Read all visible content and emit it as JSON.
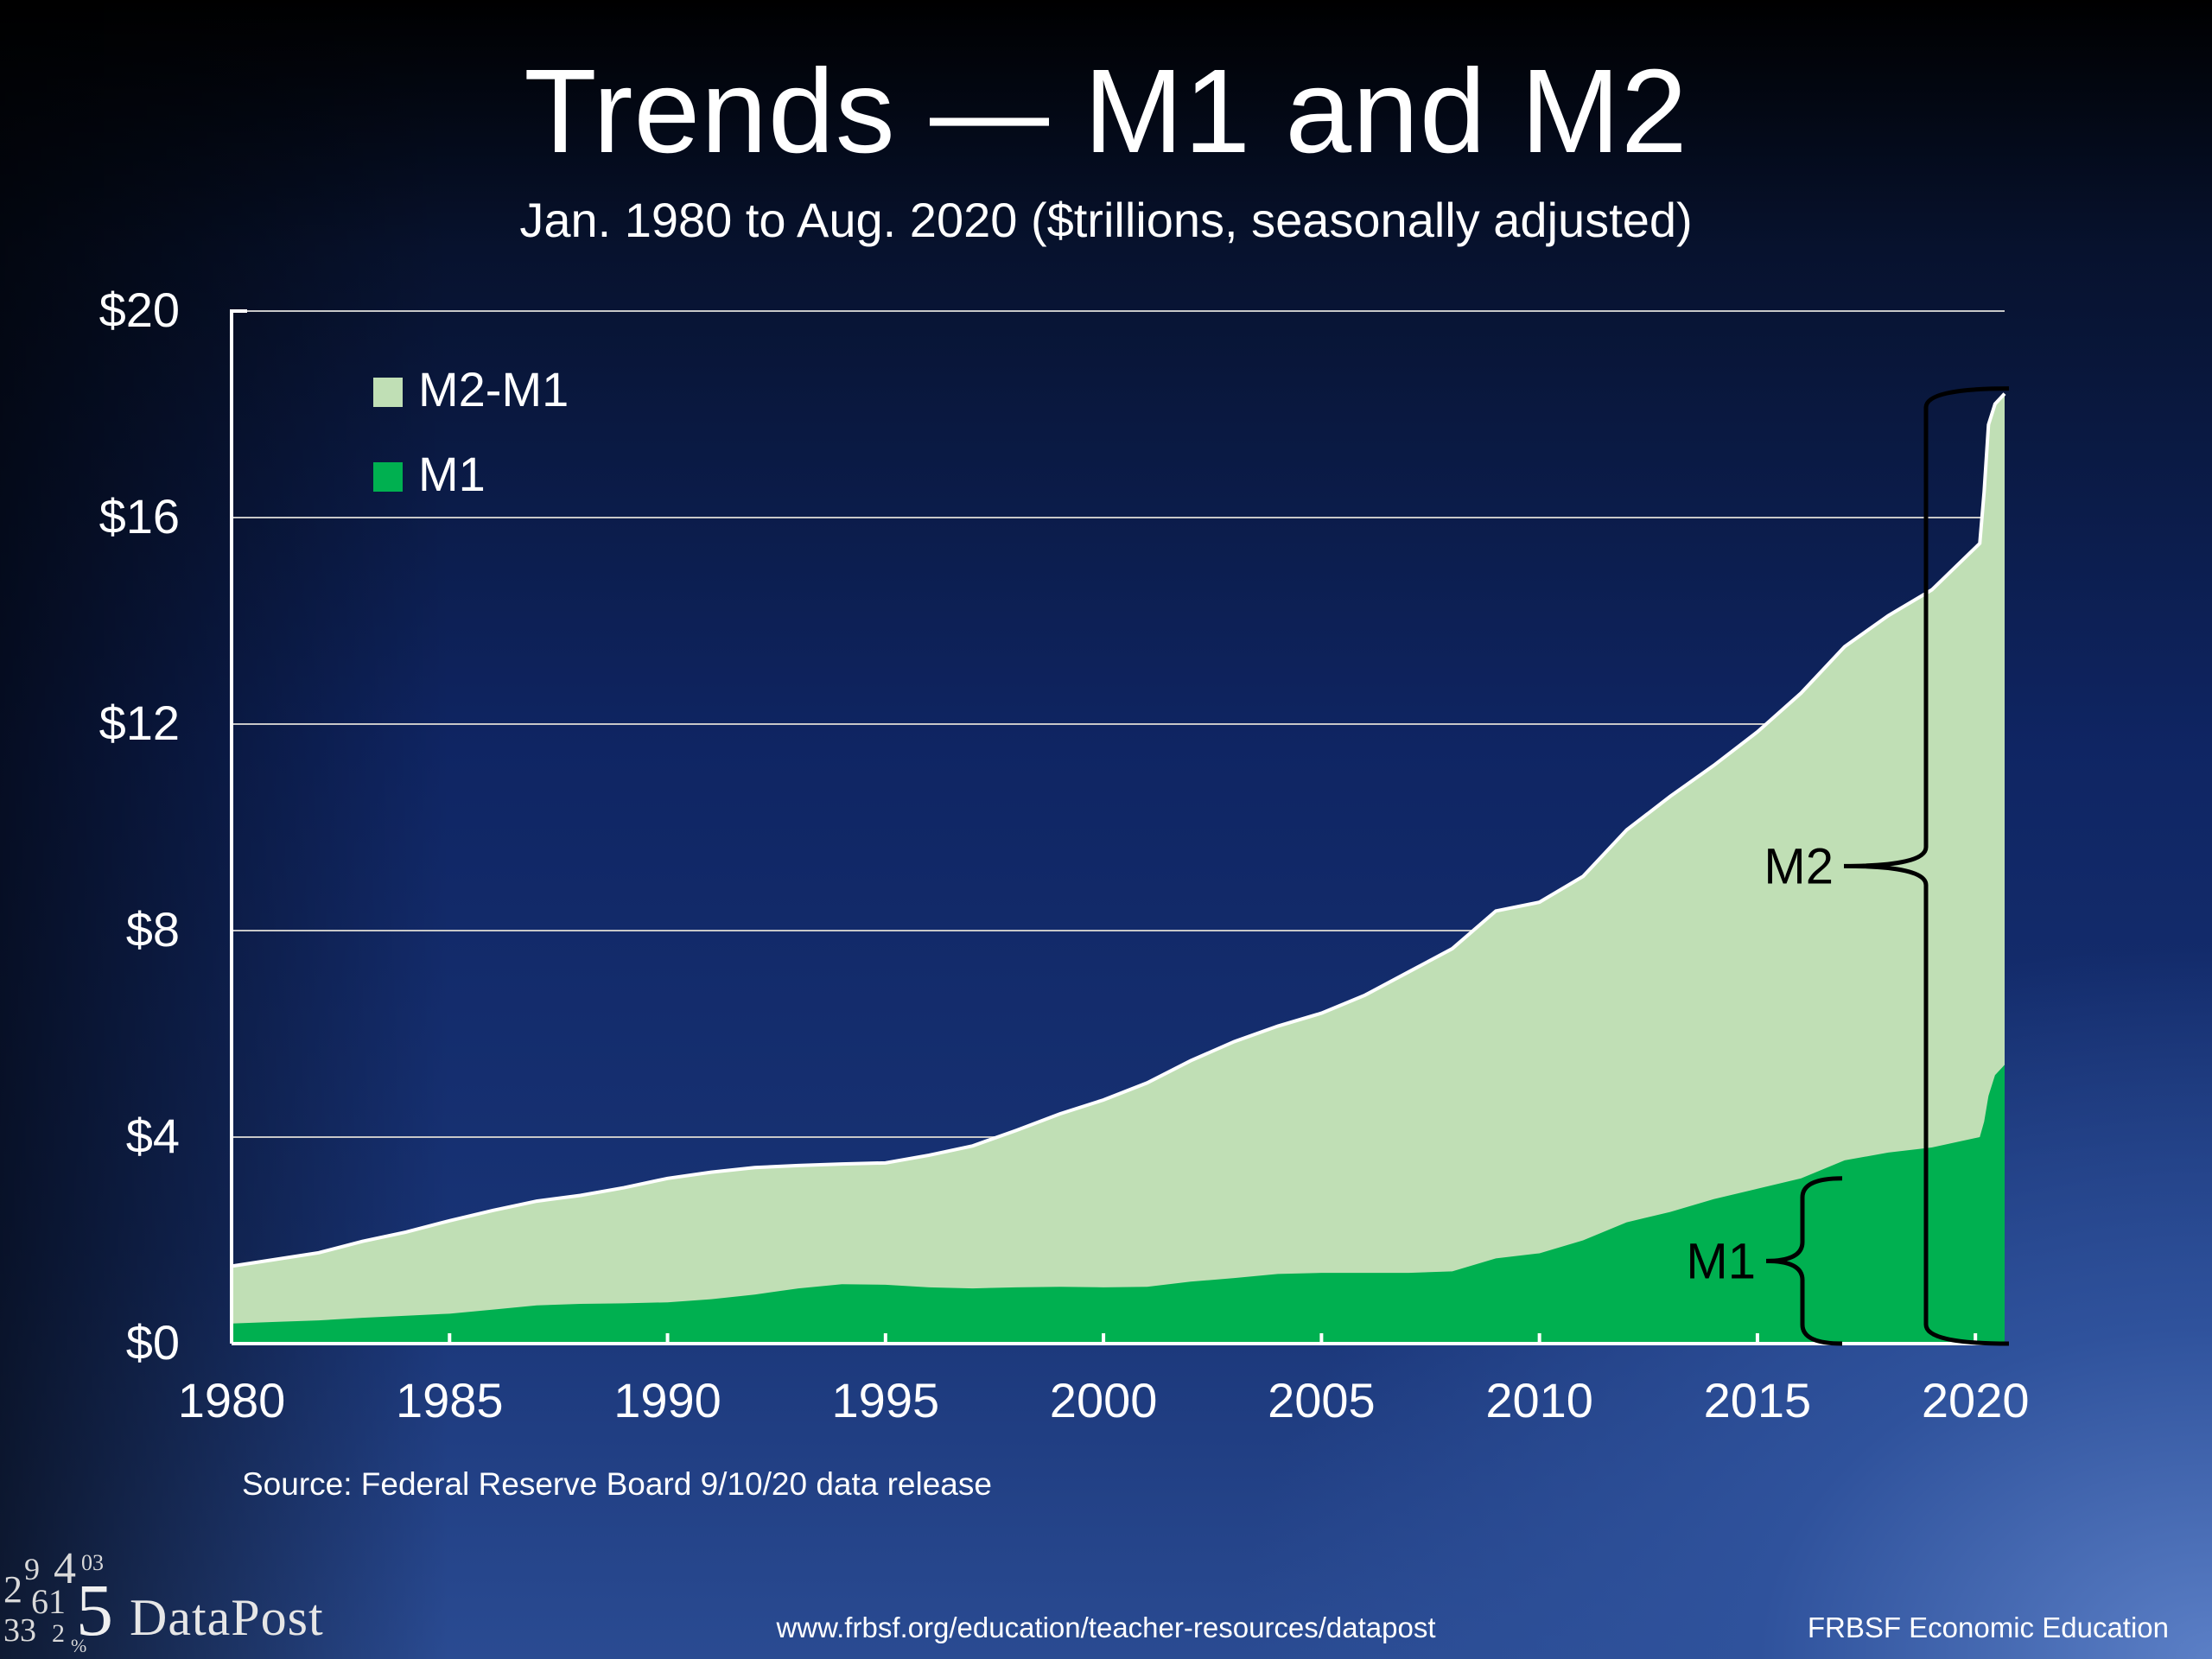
{
  "chart_data": {
    "type": "area",
    "title": "Trends — M1 and M2",
    "subtitle": "Jan. 1980 to Aug. 2020 ($trillions, seasonally adjusted)",
    "xlabel": "",
    "ylabel": "",
    "xlim": [
      1980,
      2020.67
    ],
    "ylim": [
      0,
      20
    ],
    "x_ticks": [
      1980,
      1985,
      1990,
      1995,
      2000,
      2005,
      2010,
      2015,
      2020
    ],
    "y_ticks": [
      0,
      4,
      8,
      12,
      16,
      20
    ],
    "y_tick_labels": [
      "$0",
      "$4",
      "$8",
      "$12",
      "$16",
      "$20"
    ],
    "grid": true,
    "legend_position": "top-left",
    "stacked": true,
    "series": [
      {
        "name": "M1",
        "color": "#00b050",
        "points": [
          [
            1980,
            0.39
          ],
          [
            1981,
            0.42
          ],
          [
            1982,
            0.45
          ],
          [
            1983,
            0.5
          ],
          [
            1984,
            0.54
          ],
          [
            1985,
            0.58
          ],
          [
            1986,
            0.66
          ],
          [
            1987,
            0.74
          ],
          [
            1988,
            0.77
          ],
          [
            1989,
            0.78
          ],
          [
            1990,
            0.8
          ],
          [
            1991,
            0.86
          ],
          [
            1992,
            0.95
          ],
          [
            1993,
            1.07
          ],
          [
            1994,
            1.15
          ],
          [
            1995,
            1.14
          ],
          [
            1996,
            1.09
          ],
          [
            1997,
            1.07
          ],
          [
            1998,
            1.09
          ],
          [
            1999,
            1.1
          ],
          [
            2000,
            1.09
          ],
          [
            2001,
            1.1
          ],
          [
            2002,
            1.2
          ],
          [
            2003,
            1.27
          ],
          [
            2004,
            1.35
          ],
          [
            2005,
            1.37
          ],
          [
            2006,
            1.37
          ],
          [
            2007,
            1.37
          ],
          [
            2008,
            1.4
          ],
          [
            2009,
            1.65
          ],
          [
            2010,
            1.75
          ],
          [
            2011,
            2.0
          ],
          [
            2012,
            2.35
          ],
          [
            2013,
            2.55
          ],
          [
            2014,
            2.8
          ],
          [
            2015,
            3.0
          ],
          [
            2016,
            3.2
          ],
          [
            2017,
            3.55
          ],
          [
            2018,
            3.7
          ],
          [
            2019,
            3.8
          ],
          [
            2020.1,
            4.0
          ],
          [
            2020.2,
            4.3
          ],
          [
            2020.3,
            4.8
          ],
          [
            2020.45,
            5.2
          ],
          [
            2020.67,
            5.4
          ]
        ]
      },
      {
        "name": "M2-M1",
        "color": "#c0dfb5",
        "note": "stacked top equals M2",
        "m2_points": [
          [
            1980,
            1.5
          ],
          [
            1981,
            1.63
          ],
          [
            1982,
            1.76
          ],
          [
            1983,
            1.98
          ],
          [
            1984,
            2.16
          ],
          [
            1985,
            2.38
          ],
          [
            1986,
            2.58
          ],
          [
            1987,
            2.76
          ],
          [
            1988,
            2.87
          ],
          [
            1989,
            3.02
          ],
          [
            1990,
            3.2
          ],
          [
            1991,
            3.32
          ],
          [
            1992,
            3.41
          ],
          [
            1993,
            3.45
          ],
          [
            1994,
            3.48
          ],
          [
            1995,
            3.5
          ],
          [
            1996,
            3.65
          ],
          [
            1997,
            3.83
          ],
          [
            1998,
            4.13
          ],
          [
            1999,
            4.45
          ],
          [
            2000,
            4.72
          ],
          [
            2001,
            5.05
          ],
          [
            2002,
            5.48
          ],
          [
            2003,
            5.85
          ],
          [
            2004,
            6.15
          ],
          [
            2005,
            6.4
          ],
          [
            2006,
            6.75
          ],
          [
            2007,
            7.2
          ],
          [
            2008,
            7.65
          ],
          [
            2009,
            8.38
          ],
          [
            2010,
            8.55
          ],
          [
            2011,
            9.05
          ],
          [
            2012,
            9.95
          ],
          [
            2013,
            10.6
          ],
          [
            2014,
            11.2
          ],
          [
            2015,
            11.85
          ],
          [
            2016,
            12.6
          ],
          [
            2017,
            13.5
          ],
          [
            2018,
            14.1
          ],
          [
            2019,
            14.6
          ],
          [
            2020.1,
            15.5
          ],
          [
            2020.2,
            16.5
          ],
          [
            2020.3,
            17.8
          ],
          [
            2020.45,
            18.2
          ],
          [
            2020.67,
            18.4
          ]
        ]
      }
    ],
    "annotations": [
      {
        "label": "M1",
        "type": "brace",
        "from": 0,
        "to": 3.2
      },
      {
        "label": "M2",
        "type": "brace",
        "from": 0,
        "to": 18.5
      }
    ]
  },
  "footer": {
    "source": "Source: Federal Reserve Board 9/10/20 data release",
    "url": "www.frbsf.org/education/teacher-resources/datapost",
    "org": "FRBSF Economic Education",
    "logo_text": "DataPost"
  }
}
